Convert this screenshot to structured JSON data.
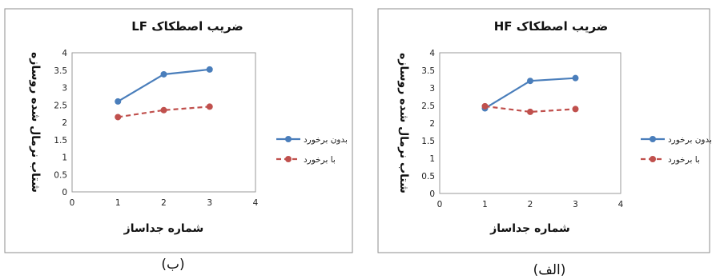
{
  "chart_data": [
    {
      "type": "line",
      "title": "ضریب اصطکاک LF",
      "xlabel": "شماره جداساز",
      "ylabel": "شتاب نرمال شده روسازه",
      "caption": "(ب)",
      "xlim": [
        0,
        4
      ],
      "ylim": [
        0,
        4
      ],
      "xticks": [
        "0",
        "1",
        "2",
        "3",
        "4"
      ],
      "yticks": [
        "0",
        "0.5",
        "1",
        "1.5",
        "2",
        "2.5",
        "3",
        "3.5",
        "4"
      ],
      "legend_position": "right",
      "grid": false,
      "series": [
        {
          "name": "بدون برخورد",
          "color": "#4a7ebb",
          "dashed": false,
          "x": [
            1,
            2,
            3
          ],
          "y": [
            2.6,
            3.38,
            3.52
          ]
        },
        {
          "name": "با برخورد",
          "color": "#c0504d",
          "dashed": true,
          "x": [
            1,
            2,
            3
          ],
          "y": [
            2.15,
            2.35,
            2.45
          ]
        }
      ]
    },
    {
      "type": "line",
      "title": "ضریب اصطکاک HF",
      "xlabel": "شماره جداساز",
      "ylabel": "شتاب نرمال شده روسازه",
      "caption": "(الف)",
      "xlim": [
        0,
        4
      ],
      "ylim": [
        0,
        4
      ],
      "xticks": [
        "0",
        "1",
        "2",
        "3",
        "4"
      ],
      "yticks": [
        "0",
        "0.5",
        "1",
        "1.5",
        "2",
        "2.5",
        "3",
        "3.5",
        "4"
      ],
      "legend_position": "right",
      "grid": false,
      "series": [
        {
          "name": "بدون برخورد",
          "color": "#4a7ebb",
          "dashed": false,
          "x": [
            1,
            2,
            3
          ],
          "y": [
            2.42,
            3.2,
            3.28
          ]
        },
        {
          "name": "با برخورد",
          "color": "#c0504d",
          "dashed": true,
          "x": [
            1,
            2,
            3
          ],
          "y": [
            2.48,
            2.32,
            2.4
          ]
        }
      ]
    }
  ]
}
